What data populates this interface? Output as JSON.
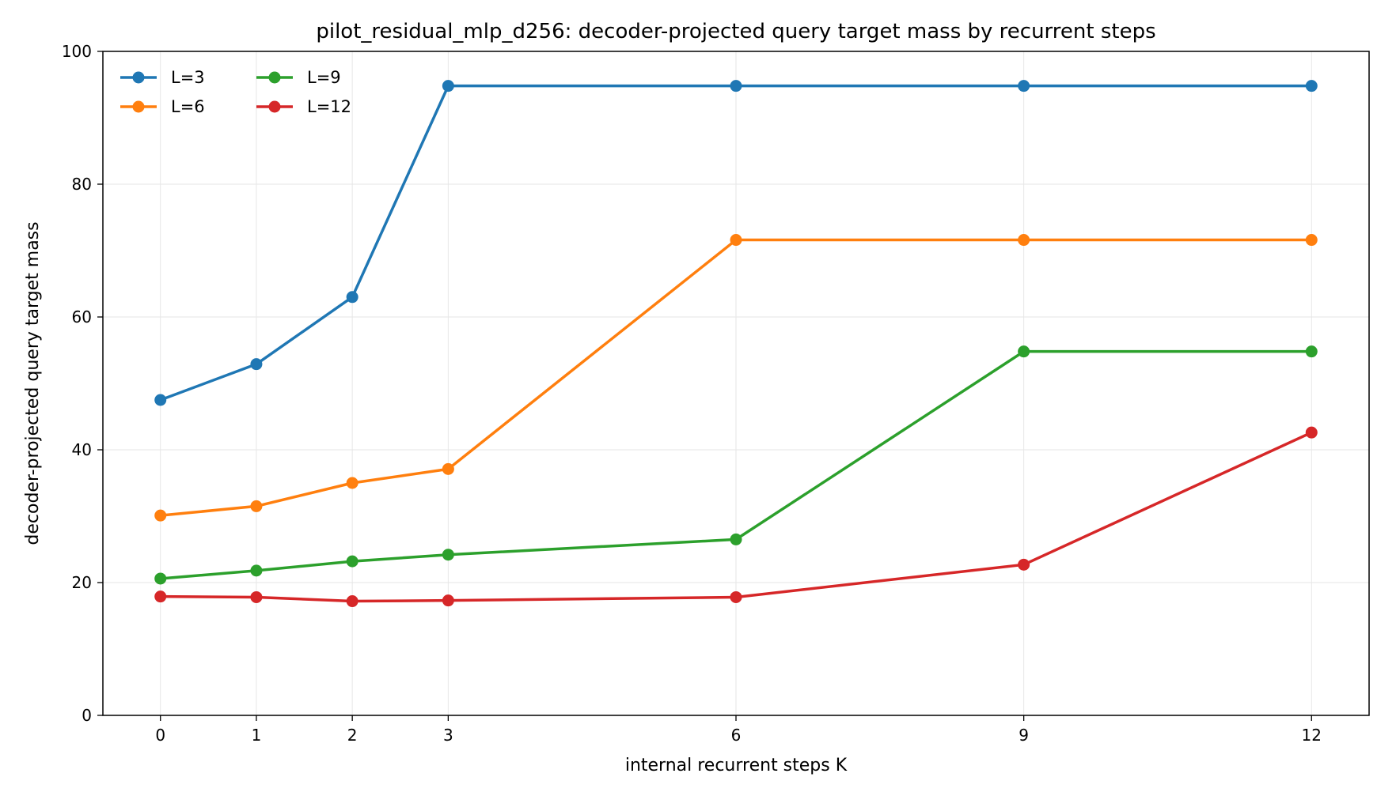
{
  "chart_data": {
    "type": "line",
    "title": "pilot_residual_mlp_d256: decoder-projected query target mass by recurrent steps",
    "xlabel": "internal recurrent steps K",
    "ylabel": "decoder-projected query target mass",
    "x": [
      0,
      1,
      2,
      3,
      6,
      9,
      12
    ],
    "xticks": [
      "0",
      "1",
      "2",
      "3",
      "6",
      "9",
      "12"
    ],
    "yticks": [
      "0",
      "20",
      "40",
      "60",
      "80",
      "100"
    ],
    "xlim": [
      -0.6,
      12.6
    ],
    "ylim": [
      0,
      100
    ],
    "grid": true,
    "legend_position": "top-left",
    "series": [
      {
        "name": "L=3",
        "color": "#1f77b4",
        "values": [
          47.5,
          52.9,
          63.0,
          94.8,
          94.8,
          94.8,
          94.8
        ]
      },
      {
        "name": "L=6",
        "color": "#ff7f0e",
        "values": [
          30.1,
          31.5,
          35.0,
          37.1,
          71.6,
          71.6,
          71.6
        ]
      },
      {
        "name": "L=9",
        "color": "#2ca02c",
        "values": [
          20.6,
          21.8,
          23.2,
          24.2,
          26.5,
          54.8,
          54.8
        ]
      },
      {
        "name": "L=12",
        "color": "#d62728",
        "values": [
          17.9,
          17.8,
          17.2,
          17.3,
          17.8,
          22.7,
          42.6
        ]
      }
    ]
  }
}
